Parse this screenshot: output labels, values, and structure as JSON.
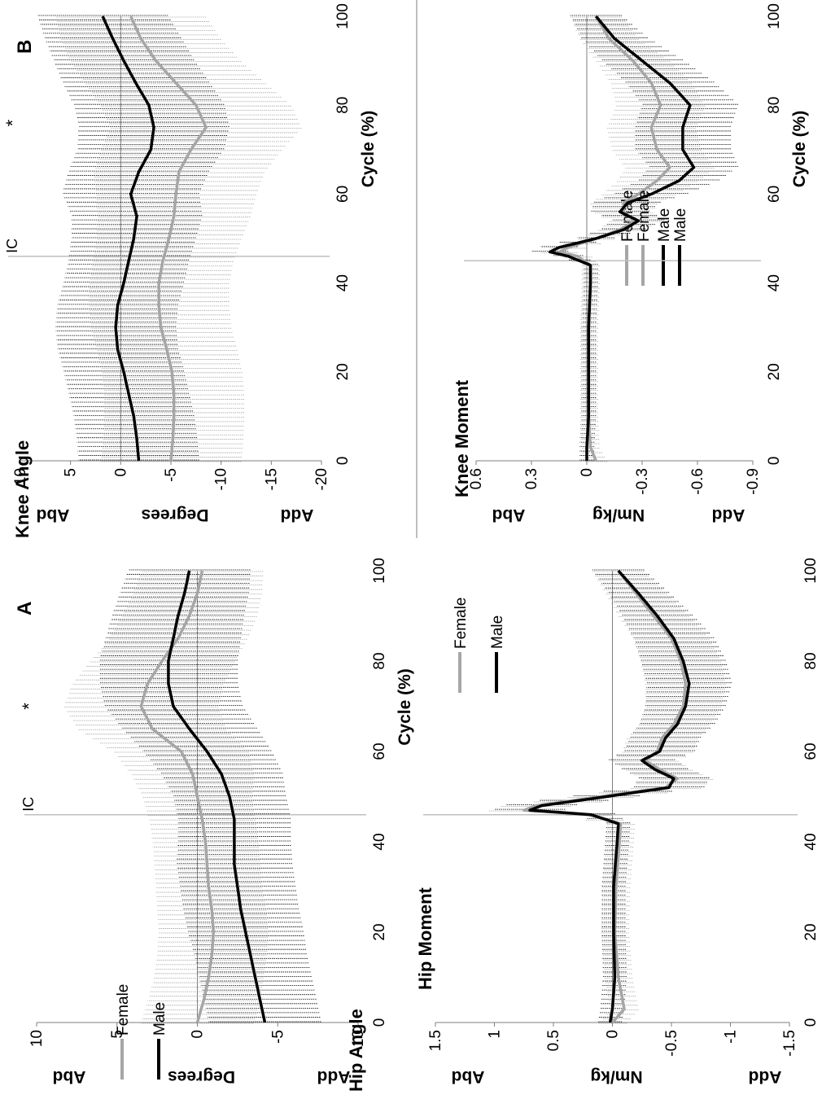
{
  "figure": {
    "orientation": "rotated 90 degrees counter-clockwise",
    "colors": {
      "female": "#a6a6a6",
      "male": "#000000",
      "axis": "#7f7f7f",
      "ic_line": "#bfbfbf"
    }
  },
  "chart_data": [
    {
      "id": "hip-angle",
      "type": "line",
      "panel": "A",
      "title": "Hip Angle",
      "xlabel": "Cycle (%)",
      "ylabel": "Degrees",
      "ylabel_top": "Add",
      "ylabel_bottom": "Abd",
      "xlim": [
        0,
        100
      ],
      "ylim": [
        -10,
        10
      ],
      "xticks": [
        "0",
        "20",
        "40",
        "60",
        "80",
        "100"
      ],
      "yticks": [
        "10",
        "5",
        "0",
        "-5",
        "-10"
      ],
      "ic_label": "IC",
      "ic_x": 46,
      "significance_marker": "*",
      "significance_x": 70,
      "legend": [
        "Female",
        "Male"
      ],
      "legend_position": "top-left",
      "x": [
        0,
        5,
        10,
        15,
        20,
        25,
        30,
        35,
        40,
        45,
        50,
        55,
        60,
        65,
        70,
        75,
        80,
        85,
        90,
        95,
        100
      ],
      "series": [
        {
          "name": "Female",
          "values": [
            0.0,
            -0.4,
            -0.7,
            -0.9,
            -1.0,
            -0.9,
            -0.7,
            -0.6,
            -0.5,
            -0.3,
            0.0,
            0.3,
            1.0,
            2.8,
            3.5,
            3.1,
            2.2,
            1.2,
            0.5,
            0.0,
            -0.3
          ],
          "sd": [
            3.5,
            3.5,
            3.4,
            3.4,
            3.4,
            3.4,
            3.3,
            3.3,
            3.3,
            3.3,
            3.4,
            3.8,
            4.2,
            4.6,
            4.8,
            4.7,
            4.5,
            4.3,
            4.2,
            4.0,
            3.8
          ]
        },
        {
          "name": "Male",
          "values": [
            -4.2,
            -3.9,
            -3.6,
            -3.3,
            -3.0,
            -2.7,
            -2.5,
            -2.3,
            -2.3,
            -2.3,
            -2.0,
            -1.5,
            -0.6,
            0.5,
            1.5,
            1.8,
            1.8,
            1.5,
            1.2,
            0.8,
            0.5
          ],
          "sd": [
            3.5,
            3.5,
            3.5,
            3.5,
            3.6,
            3.6,
            3.6,
            3.6,
            3.5,
            3.5,
            3.5,
            3.8,
            4.0,
            4.2,
            4.3,
            4.3,
            4.3,
            4.2,
            4.1,
            4.0,
            3.8
          ]
        }
      ]
    },
    {
      "id": "hip-moment",
      "type": "line",
      "title": "Hip Moment",
      "xlabel": "Cycle (%)",
      "ylabel": "Nm/kg",
      "ylabel_top": "Add",
      "ylabel_bottom": "Abd",
      "xlim": [
        0,
        100
      ],
      "ylim": [
        -1.5,
        1.5
      ],
      "xticks": [
        "0",
        "20",
        "40",
        "60",
        "80",
        "100"
      ],
      "yticks": [
        "1.5",
        "1",
        "0.5",
        "0",
        "-0.5",
        "-1",
        "-1.5"
      ],
      "legend": [
        "Female",
        "Male"
      ],
      "legend_position": "top-right",
      "ic_x": 46,
      "x": [
        0,
        3,
        10,
        20,
        30,
        40,
        44,
        46,
        47,
        48,
        50,
        52,
        54,
        56,
        58,
        60,
        63,
        66,
        70,
        75,
        80,
        85,
        90,
        95,
        100
      ],
      "series": [
        {
          "name": "Female",
          "values": [
            0.0,
            -0.1,
            -0.05,
            -0.02,
            -0.03,
            -0.06,
            -0.07,
            0.2,
            0.75,
            0.65,
            0.1,
            -0.45,
            -0.55,
            -0.4,
            -0.28,
            -0.38,
            -0.42,
            -0.52,
            -0.6,
            -0.62,
            -0.58,
            -0.5,
            -0.35,
            -0.2,
            -0.05
          ],
          "sd": [
            0.12,
            0.12,
            0.12,
            0.12,
            0.12,
            0.12,
            0.12,
            0.2,
            0.3,
            0.3,
            0.28,
            0.3,
            0.3,
            0.28,
            0.28,
            0.3,
            0.3,
            0.3,
            0.32,
            0.34,
            0.34,
            0.32,
            0.3,
            0.26,
            0.22
          ]
        },
        {
          "name": "Male",
          "values": [
            0.02,
            0.0,
            -0.02,
            -0.01,
            -0.01,
            -0.04,
            -0.05,
            0.18,
            0.7,
            0.6,
            0.05,
            -0.48,
            -0.52,
            -0.36,
            -0.25,
            -0.4,
            -0.45,
            -0.55,
            -0.62,
            -0.65,
            -0.6,
            -0.52,
            -0.38,
            -0.22,
            -0.05
          ],
          "sd": [
            0.1,
            0.1,
            0.1,
            0.1,
            0.1,
            0.1,
            0.1,
            0.2,
            0.3,
            0.3,
            0.28,
            0.3,
            0.3,
            0.28,
            0.28,
            0.3,
            0.3,
            0.32,
            0.34,
            0.36,
            0.36,
            0.34,
            0.3,
            0.26,
            0.22
          ]
        }
      ]
    },
    {
      "id": "knee-angle",
      "type": "line",
      "panel": "B",
      "title": "Knee Angle",
      "xlabel": "Cycle (%)",
      "ylabel": "Degrees",
      "ylabel_top": "Add",
      "ylabel_bottom": "Abd",
      "xlim": [
        0,
        100
      ],
      "ylim": [
        -20,
        10
      ],
      "xticks": [
        "0",
        "20",
        "40",
        "60",
        "80",
        "100"
      ],
      "yticks": [
        "10",
        "5",
        "0",
        "-5",
        "-10",
        "-15",
        "-20"
      ],
      "ic_label": "IC",
      "ic_x": 46,
      "significance_marker": "*",
      "significance_x": 76,
      "legend": [
        "Female",
        "Male"
      ],
      "legend_position": "bottom-left",
      "x": [
        0,
        5,
        10,
        15,
        20,
        25,
        30,
        35,
        40,
        45,
        50,
        55,
        60,
        65,
        70,
        75,
        80,
        85,
        90,
        95,
        100
      ],
      "series": [
        {
          "name": "Female",
          "values": [
            -5.0,
            -5.2,
            -5.3,
            -5.3,
            -5.1,
            -4.6,
            -4.0,
            -3.8,
            -3.8,
            -4.2,
            -4.8,
            -5.3,
            -5.5,
            -5.8,
            -7.0,
            -8.5,
            -7.5,
            -5.5,
            -3.5,
            -2.0,
            -1.0
          ],
          "sd": [
            7.0,
            7.0,
            7.0,
            7.0,
            7.0,
            7.0,
            7.0,
            7.0,
            7.0,
            7.0,
            7.2,
            7.6,
            8.0,
            8.5,
            9.0,
            9.5,
            9.5,
            9.0,
            8.5,
            8.0,
            7.5
          ]
        },
        {
          "name": "Male",
          "values": [
            -1.8,
            -1.6,
            -1.3,
            -0.8,
            -0.3,
            0.3,
            0.5,
            0.3,
            -0.3,
            -0.8,
            -1.3,
            -1.6,
            -1.0,
            -1.8,
            -3.0,
            -3.3,
            -2.8,
            -1.5,
            -0.3,
            0.8,
            1.8
          ],
          "sd": [
            6.0,
            6.0,
            6.0,
            6.0,
            6.0,
            6.0,
            6.0,
            6.0,
            6.0,
            6.0,
            6.2,
            6.5,
            6.8,
            7.0,
            7.3,
            7.5,
            7.5,
            7.3,
            7.0,
            6.8,
            6.5
          ]
        }
      ]
    },
    {
      "id": "knee-moment",
      "type": "line",
      "title": "Knee Moment",
      "xlabel": "Cycle (%)",
      "ylabel": "Nm/kg",
      "ylabel_top": "Add",
      "ylabel_bottom": "Abd",
      "xlim": [
        0,
        100
      ],
      "ylim": [
        -0.9,
        0.6
      ],
      "xticks": [
        "0",
        "20",
        "40",
        "60",
        "80",
        "100"
      ],
      "yticks": [
        "0.6",
        "0.3",
        "0",
        "-0.3",
        "-0.6",
        "-0.9"
      ],
      "legend": [
        "Female",
        "Male"
      ],
      "legend_position": "bottom-left",
      "ic_x": 45,
      "x": [
        0,
        3,
        10,
        20,
        30,
        40,
        44,
        46,
        47,
        48,
        50,
        52,
        54,
        56,
        58,
        60,
        63,
        66,
        70,
        75,
        80,
        85,
        90,
        95,
        100
      ],
      "series": [
        {
          "name": "Female",
          "values": [
            -0.05,
            -0.02,
            -0.01,
            -0.01,
            -0.01,
            -0.02,
            -0.02,
            0.05,
            0.15,
            0.1,
            -0.05,
            -0.18,
            -0.26,
            -0.2,
            -0.2,
            -0.28,
            -0.38,
            -0.45,
            -0.38,
            -0.35,
            -0.4,
            -0.35,
            -0.25,
            -0.12,
            -0.05
          ],
          "sd": [
            0.06,
            0.05,
            0.05,
            0.05,
            0.05,
            0.05,
            0.05,
            0.08,
            0.1,
            0.1,
            0.1,
            0.12,
            0.14,
            0.16,
            0.18,
            0.2,
            0.22,
            0.24,
            0.24,
            0.24,
            0.24,
            0.22,
            0.2,
            0.16,
            0.14
          ]
        },
        {
          "name": "Male",
          "values": [
            0.0,
            0.0,
            -0.01,
            -0.01,
            -0.01,
            -0.02,
            -0.02,
            0.1,
            0.2,
            0.15,
            -0.05,
            -0.2,
            -0.28,
            -0.18,
            -0.22,
            -0.35,
            -0.5,
            -0.58,
            -0.52,
            -0.52,
            -0.56,
            -0.45,
            -0.3,
            -0.15,
            -0.05
          ],
          "sd": [
            0.04,
            0.04,
            0.04,
            0.04,
            0.04,
            0.04,
            0.04,
            0.08,
            0.1,
            0.1,
            0.1,
            0.12,
            0.14,
            0.16,
            0.18,
            0.2,
            0.22,
            0.24,
            0.26,
            0.26,
            0.26,
            0.24,
            0.22,
            0.18,
            0.14
          ]
        }
      ]
    }
  ]
}
